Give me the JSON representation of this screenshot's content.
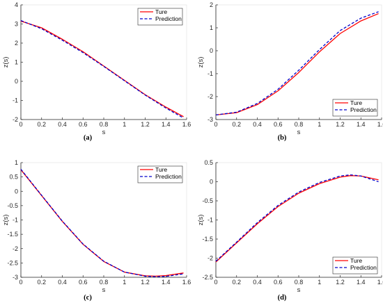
{
  "colors": {
    "true_line": "#ff0000",
    "prediction_line": "#0000cc",
    "axis": "#262626",
    "frame": "#e6e6e6"
  },
  "chart_data": [
    {
      "type": "line",
      "caption": "(a)",
      "xlabel": "s",
      "ylabel": "z(s)",
      "xlim": [
        0,
        1.6
      ],
      "ylim": [
        -2,
        4
      ],
      "xticks": [
        "0",
        "0.2",
        "0.4",
        "0.6",
        "0.8",
        "1",
        "1.2",
        "1.4",
        "1.6"
      ],
      "yticks": [
        "-2",
        "-1",
        "0",
        "1",
        "2",
        "3",
        "4"
      ],
      "legend_position": "top-right",
      "grid": false,
      "x": [
        0,
        0.2,
        0.4,
        0.6,
        0.8,
        1.0,
        1.2,
        1.4,
        1.57
      ],
      "series": [
        {
          "name": "Ture",
          "style": "solid",
          "values": [
            3.15,
            2.8,
            2.2,
            1.55,
            0.8,
            0.05,
            -0.7,
            -1.35,
            -1.85
          ]
        },
        {
          "name": "Prediction",
          "style": "dashed",
          "values": [
            3.18,
            2.75,
            2.15,
            1.5,
            0.78,
            0.03,
            -0.72,
            -1.4,
            -1.92
          ]
        }
      ]
    },
    {
      "type": "line",
      "caption": "(b)",
      "xlabel": "s",
      "ylabel": "z(s)",
      "xlim": [
        0,
        1.6
      ],
      "ylim": [
        -3,
        2
      ],
      "xticks": [
        "0",
        "0.2",
        "0.4",
        "0.6",
        "0.8",
        "1",
        "1.2",
        "1.4",
        "1.6"
      ],
      "yticks": [
        "-3",
        "-2",
        "-1",
        "0",
        "1",
        "2"
      ],
      "legend_position": "bottom-right",
      "grid": false,
      "x": [
        0,
        0.2,
        0.4,
        0.6,
        0.8,
        1.0,
        1.2,
        1.4,
        1.57
      ],
      "series": [
        {
          "name": "Ture",
          "style": "solid",
          "values": [
            -2.8,
            -2.7,
            -2.35,
            -1.75,
            -0.95,
            -0.05,
            0.75,
            1.3,
            1.62
          ]
        },
        {
          "name": "Prediction",
          "style": "dashed",
          "values": [
            -2.8,
            -2.68,
            -2.3,
            -1.68,
            -0.85,
            0.05,
            0.88,
            1.42,
            1.7
          ]
        }
      ]
    },
    {
      "type": "line",
      "caption": "(c)",
      "xlabel": "s",
      "ylabel": "z(s)",
      "xlim": [
        0,
        1.6
      ],
      "ylim": [
        -3,
        1
      ],
      "xticks": [
        "0",
        "0.2",
        "0.4",
        "0.6",
        "0.8",
        "1",
        "1.2",
        "1.4",
        "1.6"
      ],
      "yticks": [
        "-3",
        "-2.5",
        "-2",
        "-1.5",
        "-1",
        "-0.5",
        "0",
        "0.5",
        "1"
      ],
      "legend_position": "top-right",
      "grid": false,
      "x": [
        0,
        0.2,
        0.4,
        0.6,
        0.8,
        1.0,
        1.2,
        1.3,
        1.4,
        1.57
      ],
      "series": [
        {
          "name": "Ture",
          "style": "solid",
          "values": [
            0.75,
            -0.15,
            -1.05,
            -1.85,
            -2.45,
            -2.82,
            -2.95,
            -2.96,
            -2.94,
            -2.85
          ]
        },
        {
          "name": "Prediction",
          "style": "dashed",
          "values": [
            0.77,
            -0.14,
            -1.04,
            -1.84,
            -2.44,
            -2.82,
            -2.96,
            -2.98,
            -2.97,
            -2.88
          ]
        }
      ]
    },
    {
      "type": "line",
      "caption": "(d)",
      "xlabel": "s",
      "ylabel": "z(s)",
      "xlim": [
        0,
        1.6
      ],
      "ylim": [
        -2.5,
        0.5
      ],
      "xticks": [
        "0",
        "0.2",
        "0.4",
        "0.6",
        "0.8",
        "1",
        "1.2",
        "1.4",
        "1.6"
      ],
      "yticks": [
        "-2.5",
        "-2",
        "-1.5",
        "-1",
        "-0.5",
        "0",
        "0.5"
      ],
      "legend_position": "bottom-right",
      "grid": false,
      "x": [
        0,
        0.2,
        0.4,
        0.6,
        0.8,
        1.0,
        1.2,
        1.3,
        1.4,
        1.57
      ],
      "series": [
        {
          "name": "Ture",
          "style": "solid",
          "values": [
            -2.1,
            -1.6,
            -1.1,
            -0.65,
            -0.3,
            -0.05,
            0.12,
            0.16,
            0.15,
            0.05
          ]
        },
        {
          "name": "Prediction",
          "style": "dashed",
          "values": [
            -2.08,
            -1.58,
            -1.07,
            -0.62,
            -0.27,
            -0.02,
            0.15,
            0.18,
            0.15,
            0.0
          ]
        }
      ]
    }
  ]
}
